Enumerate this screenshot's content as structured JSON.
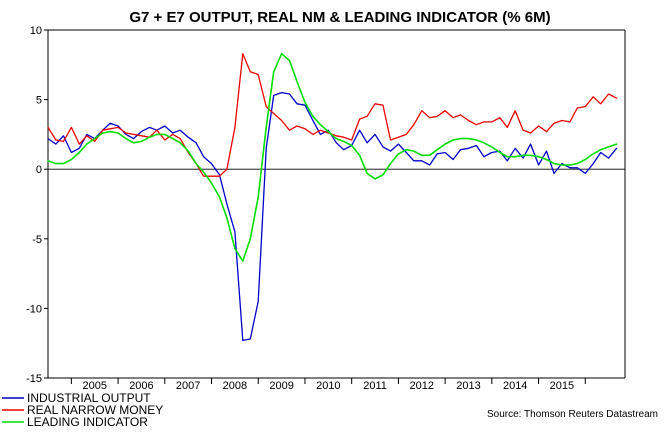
{
  "chart_data": {
    "type": "line",
    "title": "G7 + E7 OUTPUT, REAL NM & LEADING INDICATOR (% 6M)",
    "xlabel": "",
    "ylabel": "",
    "xlim": [
      2004.5,
      2016.85
    ],
    "ylim": [
      -15,
      10
    ],
    "y_ticks": [
      10,
      5,
      0,
      -5,
      -10,
      -15
    ],
    "x_tick_labels": [
      "2005",
      "2006",
      "2007",
      "2008",
      "2009",
      "2010",
      "2011",
      "2012",
      "2013",
      "2014",
      "2015"
    ],
    "zero_line": true,
    "legend_position": "bottom-left",
    "source": "Source: Thomson Reuters Datastream",
    "series": [
      {
        "name": "INDUSTRIAL OUTPUT",
        "color": "#0000cc",
        "x": [
          2004.5,
          2004.67,
          2004.83,
          2005.0,
          2005.17,
          2005.33,
          2005.5,
          2005.67,
          2005.83,
          2006.0,
          2006.17,
          2006.33,
          2006.5,
          2006.67,
          2006.83,
          2007.0,
          2007.17,
          2007.33,
          2007.5,
          2007.67,
          2007.83,
          2008.0,
          2008.17,
          2008.33,
          2008.5,
          2008.67,
          2008.83,
          2009.0,
          2009.17,
          2009.33,
          2009.5,
          2009.67,
          2009.83,
          2010.0,
          2010.17,
          2010.33,
          2010.5,
          2010.67,
          2010.83,
          2011.0,
          2011.17,
          2011.33,
          2011.5,
          2011.67,
          2011.83,
          2012.0,
          2012.17,
          2012.33,
          2012.5,
          2012.67,
          2012.83,
          2013.0,
          2013.17,
          2013.33,
          2013.5,
          2013.67,
          2013.83,
          2014.0,
          2014.17,
          2014.33,
          2014.5,
          2014.67,
          2014.83,
          2015.0,
          2015.17,
          2015.33,
          2015.5,
          2015.67,
          2015.83,
          2016.0,
          2016.17,
          2016.33,
          2016.5,
          2016.67
        ],
        "values": [
          2.2,
          1.8,
          2.4,
          1.2,
          1.5,
          2.5,
          2.2,
          2.8,
          3.3,
          3.1,
          2.5,
          2.2,
          2.7,
          3.0,
          2.8,
          3.1,
          2.6,
          2.8,
          2.3,
          1.9,
          0.9,
          0.4,
          -0.4,
          -2.5,
          -4.5,
          -12.3,
          -12.2,
          -9.5,
          1.5,
          5.3,
          5.5,
          5.4,
          4.7,
          4.6,
          3.5,
          2.5,
          2.8,
          1.9,
          1.4,
          1.7,
          2.8,
          1.9,
          2.5,
          1.6,
          1.3,
          1.8,
          1.2,
          0.6,
          0.6,
          0.3,
          1.1,
          1.2,
          0.7,
          1.4,
          1.5,
          1.7,
          0.9,
          1.2,
          1.3,
          0.6,
          1.5,
          0.8,
          1.8,
          0.3,
          1.3,
          -0.3,
          0.4,
          0.1,
          0.1,
          -0.3,
          0.4,
          1.2,
          0.8,
          1.5
        ]
      },
      {
        "name": "REAL NARROW MONEY",
        "color": "#ee0000",
        "x": [
          2004.5,
          2004.67,
          2004.83,
          2005.0,
          2005.17,
          2005.33,
          2005.5,
          2005.67,
          2005.83,
          2006.0,
          2006.17,
          2006.33,
          2006.5,
          2006.67,
          2006.83,
          2007.0,
          2007.17,
          2007.33,
          2007.5,
          2007.67,
          2007.83,
          2008.0,
          2008.17,
          2008.33,
          2008.5,
          2008.67,
          2008.83,
          2009.0,
          2009.17,
          2009.33,
          2009.5,
          2009.67,
          2009.83,
          2010.0,
          2010.17,
          2010.33,
          2010.5,
          2010.67,
          2010.83,
          2011.0,
          2011.17,
          2011.33,
          2011.5,
          2011.67,
          2011.83,
          2012.0,
          2012.17,
          2012.33,
          2012.5,
          2012.67,
          2012.83,
          2013.0,
          2013.17,
          2013.33,
          2013.5,
          2013.67,
          2013.83,
          2014.0,
          2014.17,
          2014.33,
          2014.5,
          2014.67,
          2014.83,
          2015.0,
          2015.17,
          2015.33,
          2015.5,
          2015.67,
          2015.83,
          2016.0,
          2016.17,
          2016.33,
          2016.5,
          2016.67
        ],
        "values": [
          3.0,
          2.1,
          2.0,
          3.0,
          1.8,
          2.4,
          2.0,
          2.8,
          2.9,
          3.0,
          2.6,
          2.5,
          2.4,
          2.3,
          2.8,
          2.1,
          2.5,
          2.2,
          1.2,
          0.4,
          -0.5,
          -0.5,
          -0.5,
          0.0,
          3.0,
          8.3,
          7.0,
          6.8,
          4.5,
          4.0,
          3.5,
          2.8,
          3.1,
          2.9,
          2.5,
          2.8,
          2.6,
          2.4,
          2.3,
          2.1,
          3.6,
          3.8,
          4.7,
          4.6,
          2.1,
          2.3,
          2.5,
          3.2,
          4.2,
          3.7,
          3.8,
          4.2,
          3.7,
          3.9,
          3.5,
          3.2,
          3.4,
          3.4,
          3.7,
          3.0,
          4.2,
          2.8,
          2.6,
          3.1,
          2.7,
          3.3,
          3.5,
          3.4,
          4.4,
          4.5,
          5.2,
          4.7,
          5.4,
          5.1
        ]
      },
      {
        "name": "LEADING INDICATOR",
        "color": "#00dd00",
        "x": [
          2004.5,
          2004.67,
          2004.83,
          2005.0,
          2005.17,
          2005.33,
          2005.5,
          2005.67,
          2005.83,
          2006.0,
          2006.17,
          2006.33,
          2006.5,
          2006.67,
          2006.83,
          2007.0,
          2007.17,
          2007.33,
          2007.5,
          2007.67,
          2007.83,
          2008.0,
          2008.17,
          2008.33,
          2008.5,
          2008.67,
          2008.83,
          2009.0,
          2009.17,
          2009.33,
          2009.5,
          2009.67,
          2009.83,
          2010.0,
          2010.17,
          2010.33,
          2010.5,
          2010.67,
          2010.83,
          2011.0,
          2011.17,
          2011.33,
          2011.5,
          2011.67,
          2011.83,
          2012.0,
          2012.17,
          2012.33,
          2012.5,
          2012.67,
          2012.83,
          2013.0,
          2013.17,
          2013.33,
          2013.5,
          2013.67,
          2013.83,
          2014.0,
          2014.17,
          2014.33,
          2014.5,
          2014.67,
          2014.83,
          2015.0,
          2015.17,
          2015.33,
          2015.5,
          2015.67,
          2015.83,
          2016.0,
          2016.17,
          2016.33,
          2016.5,
          2016.67
        ],
        "values": [
          0.6,
          0.4,
          0.4,
          0.7,
          1.2,
          1.8,
          2.2,
          2.6,
          2.7,
          2.6,
          2.2,
          1.9,
          2.0,
          2.3,
          2.5,
          2.5,
          2.2,
          1.9,
          1.3,
          0.4,
          -0.2,
          -1.0,
          -2.0,
          -3.5,
          -5.7,
          -6.6,
          -5.0,
          -2.0,
          3.0,
          7.0,
          8.3,
          7.8,
          6.3,
          4.8,
          3.8,
          3.2,
          2.7,
          2.2,
          2.0,
          1.7,
          1.0,
          -0.3,
          -0.7,
          -0.4,
          0.4,
          1.1,
          1.4,
          1.3,
          1.0,
          1.0,
          1.4,
          1.8,
          2.1,
          2.2,
          2.2,
          2.1,
          1.9,
          1.6,
          1.2,
          0.9,
          0.9,
          1.0,
          1.0,
          0.9,
          0.7,
          0.4,
          0.3,
          0.3,
          0.4,
          0.7,
          1.1,
          1.4,
          1.6,
          1.8
        ]
      }
    ]
  }
}
